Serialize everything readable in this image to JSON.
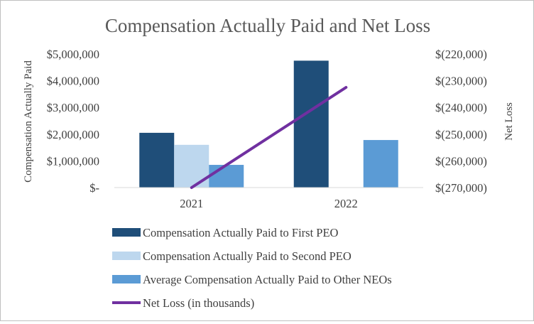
{
  "chart_data": {
    "type": "bar",
    "title": "Compensation Actually Paid and Net Loss",
    "categories": [
      "2021",
      "2022"
    ],
    "ylabel": "Compensation Actually Paid",
    "y2label": "Net Loss",
    "ylim": [
      0,
      5000000
    ],
    "y2lim": [
      -270000,
      -220000
    ],
    "yticks": [
      "$-",
      "$1,000,000",
      "$2,000,000",
      "$3,000,000",
      "$4,000,000",
      "$5,000,000"
    ],
    "y2ticks": [
      "$(270,000)",
      "$(260,000)",
      "$(250,000)",
      "$(240,000)",
      "$(230,000)",
      "$(220,000)"
    ],
    "grid": false,
    "legend_position": "bottom",
    "series": [
      {
        "name": "Compensation Actually Paid to First PEO",
        "type": "bar",
        "axis": "left",
        "color": "#1f4e79",
        "values": [
          2050000,
          4750000
        ]
      },
      {
        "name": "Compensation Actually Paid to Second PEO",
        "type": "bar",
        "axis": "left",
        "color": "#bdd7ee",
        "values": [
          1600000,
          0
        ]
      },
      {
        "name": "Average Compensation Actually Paid to Other NEOs",
        "type": "bar",
        "axis": "left",
        "color": "#5b9bd5",
        "values": [
          850000,
          1780000
        ]
      },
      {
        "name": "Net Loss (in thousands)",
        "type": "line",
        "axis": "right",
        "color": "#7030a0",
        "values": [
          -270000,
          -232500
        ]
      }
    ]
  }
}
